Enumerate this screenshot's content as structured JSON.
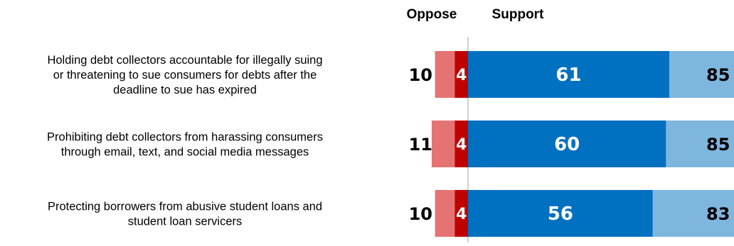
{
  "headers": {
    "oppose": "Oppose",
    "support": "Support"
  },
  "colors": {
    "oppose_strong": "#c00000",
    "oppose_somewhat": "#e57373",
    "support_strong": "#0070c0",
    "support_somewhat": "#7fb6de",
    "center_line": "#d0d0d0"
  },
  "chart_data": {
    "type": "bar",
    "orientation": "horizontal-diverging",
    "categories": [
      "Holding debt collectors accountable for illegally suing or threatening to sue consumers for debts after the deadline to sue has expired",
      "Prohibiting debt collectors from harassing consumers through email, text, and social media messages",
      "Protecting borrowers from abusive student loans and student loan servicers"
    ],
    "category_lines": [
      [
        "Holding debt collectors accountable for illegally suing",
        "or threatening to sue consumers for debts after the",
        "deadline to sue has expired"
      ],
      [
        "Prohibiting debt collectors from harassing consumers",
        "through email, text, and social media messages"
      ],
      [
        "Protecting borrowers from abusive student loans and",
        "student loan servicers"
      ]
    ],
    "oppose_total": [
      10,
      11,
      10
    ],
    "oppose_strong": [
      4,
      4,
      4
    ],
    "support_strong": [
      61,
      60,
      56
    ],
    "support_total": [
      85,
      85,
      83
    ]
  }
}
